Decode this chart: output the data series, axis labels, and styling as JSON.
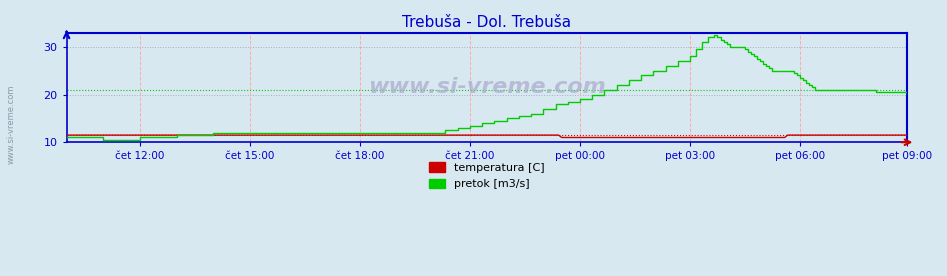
{
  "title": "Trebuša - Dol. Trebuša",
  "title_color": "#0000cc",
  "bg_color": "#d8e8f0",
  "plot_bg_color": "#d8e8f0",
  "ylabel_left": "",
  "ylim": [
    10,
    33
  ],
  "yticks": [
    10,
    20,
    30
  ],
  "xtick_labels": [
    "čet 12:00",
    "čet 15:00",
    "čet 18:00",
    "čet 21:00",
    "pet 00:00",
    "pet 03:00",
    "pet 06:00",
    "pet 09:00"
  ],
  "grid_color_h": "#aaaacc",
  "grid_color_v": "#ffaaaa",
  "axis_color": "#0000cc",
  "tick_color": "#0000cc",
  "watermark": "www.si-vreme.com",
  "watermark_color": "#aaaacc",
  "legend_items": [
    {
      "label": "temperatura [C]",
      "color": "#cc0000"
    },
    {
      "label": "pretok [m3/s]",
      "color": "#00cc00"
    }
  ],
  "hline_temp": 11.5,
  "hline_pretok": 21.0,
  "hline_temp_color": "#cc0000",
  "hline_pretok_color": "#00cc00",
  "n_points": 288,
  "temp_base": 11.5,
  "pretok_data": [
    11,
    11,
    11,
    11,
    11,
    11,
    11,
    11,
    11,
    11,
    11,
    11,
    10.5,
    10.5,
    10.5,
    10.5,
    10.5,
    10.5,
    10.5,
    10.5,
    10.5,
    10.5,
    10.5,
    10.5,
    11,
    11,
    11,
    11,
    11,
    11,
    11,
    11,
    11,
    11,
    11,
    11,
    11.5,
    11.5,
    11.5,
    11.5,
    11.5,
    11.5,
    11.5,
    11.5,
    11.5,
    11.5,
    11.5,
    11.5,
    12,
    12,
    12,
    12,
    12,
    12,
    12,
    12,
    12,
    12,
    12,
    12,
    12,
    12,
    12,
    12,
    12,
    12,
    12,
    12,
    12,
    12,
    12,
    12,
    12,
    12,
    12,
    12,
    12,
    12,
    12,
    12,
    12,
    12,
    12,
    12,
    12,
    12,
    12,
    12,
    12,
    12,
    12,
    12,
    12,
    12,
    12,
    12,
    12,
    12,
    12,
    12,
    12,
    12,
    12,
    12,
    12,
    12,
    12,
    12,
    12,
    12,
    12,
    12,
    12,
    12,
    12,
    12,
    12,
    12,
    12,
    12,
    12,
    12,
    12,
    12,
    12.5,
    12.5,
    12.5,
    12.5,
    13,
    13,
    13,
    13,
    13.5,
    13.5,
    13.5,
    13.5,
    14,
    14,
    14,
    14,
    14.5,
    14.5,
    14.5,
    14.5,
    15,
    15,
    15,
    15,
    15.5,
    15.5,
    15.5,
    15.5,
    16,
    16,
    16,
    16,
    17,
    17,
    17,
    17,
    18,
    18,
    18,
    18,
    18.5,
    18.5,
    18.5,
    18.5,
    19,
    19,
    19,
    19,
    20,
    20,
    20,
    20,
    21,
    21,
    21,
    21,
    22,
    22,
    22,
    22,
    23,
    23,
    23,
    23,
    24,
    24,
    24,
    24,
    25,
    25,
    25,
    25,
    26,
    26,
    26,
    26,
    27,
    27,
    27,
    27,
    28,
    28,
    29.5,
    29.5,
    31,
    31,
    32,
    32,
    32.5,
    32,
    31.5,
    31,
    30.5,
    30,
    30,
    30,
    30,
    30,
    29.5,
    29,
    28.5,
    28,
    27.5,
    27,
    26.5,
    26,
    25.5,
    25,
    25,
    25,
    25,
    25,
    25,
    25,
    24.5,
    24,
    23.5,
    23,
    22.5,
    22,
    21.5,
    21,
    21,
    21,
    21,
    21,
    21,
    21,
    21,
    21,
    21,
    21,
    21,
    21,
    21,
    21,
    21,
    21,
    21,
    21,
    21,
    20.5,
    20.5,
    20.5,
    20.5,
    20.5,
    20.5,
    20.5,
    20.5,
    20.5,
    20.5,
    20,
    20,
    20,
    20,
    20,
    20,
    20,
    20,
    20,
    20,
    20,
    20
  ],
  "temp_data": [
    11.5,
    11.5,
    11.5,
    11.5,
    11.5,
    11.5,
    11.5,
    11.5,
    11.5,
    11.5,
    11.5,
    11.5,
    11.5,
    11.5,
    11.5,
    11.5,
    11.5,
    11.5,
    11.5,
    11.5,
    11.5,
    11.5,
    11.5,
    11.5,
    11.5,
    11.5,
    11.5,
    11.5,
    11.5,
    11.5,
    11.5,
    11.5,
    11.5,
    11.5,
    11.5,
    11.5,
    11.5,
    11.5,
    11.5,
    11.5,
    11.5,
    11.5,
    11.5,
    11.5,
    11.5,
    11.5,
    11.5,
    11.5,
    11.5,
    11.5,
    11.5,
    11.5,
    11.5,
    11.5,
    11.5,
    11.5,
    11.5,
    11.5,
    11.5,
    11.5,
    11.5,
    11.5,
    11.5,
    11.5,
    11.5,
    11.5,
    11.5,
    11.5,
    11.5,
    11.5,
    11.5,
    11.5,
    11.5,
    11.5,
    11.5,
    11.5,
    11.5,
    11.5,
    11.5,
    11.5,
    11.5,
    11.5,
    11.5,
    11.5,
    11.5,
    11.5,
    11.5,
    11.5,
    11.5,
    11.5,
    11.5,
    11.5,
    11.5,
    11.5,
    11.5,
    11.5,
    11.5,
    11.5,
    11.5,
    11.5,
    11.5,
    11.5,
    11.5,
    11.5,
    11.5,
    11.5,
    11.5,
    11.5,
    11.5,
    11.5,
    11.5,
    11.5,
    11.5,
    11.5,
    11.5,
    11.5,
    11.5,
    11.5,
    11.5,
    11.5,
    11.5,
    11.5,
    11.5,
    11.5,
    11.5,
    11.5,
    11.5,
    11.5,
    11.5,
    11.5,
    11.5,
    11.5,
    11.5,
    11.5,
    11.5,
    11.5,
    11.5,
    11.5,
    11.5,
    11.5,
    11.5,
    11.5,
    11.5,
    11.5,
    11.5,
    11.5,
    11.5,
    11.5,
    11.5,
    11.5,
    11.5,
    11.5,
    11.5,
    11.5,
    11.5,
    11.5,
    11.5,
    11.5,
    11.5,
    11.5,
    11.5,
    11.5,
    11.0,
    11.0,
    11.0,
    11.0,
    11.0,
    11.0,
    11.0,
    11.0,
    11.0,
    11.0,
    11.0,
    11.0,
    11.0,
    11.0,
    11.0,
    11.0,
    11.0,
    11.0,
    11.0,
    11.0,
    11.0,
    11.0,
    11.0,
    11.0,
    11.0,
    11.0,
    11.0,
    11.0,
    11.0,
    11.0,
    11.0,
    11.0,
    11.0,
    11.0,
    11.0,
    11.0,
    11.0,
    11.0,
    11.0,
    11.0,
    11.0,
    11.0,
    11.0,
    11.0,
    11.0,
    11.0,
    11.0,
    11.0,
    11.0,
    11.0,
    11.0,
    11.0,
    11.0,
    11.0,
    11.0,
    11.0,
    11.0,
    11.0,
    11.0,
    11.0,
    11.0,
    11.0,
    11.0,
    11.0,
    11.0,
    11.0,
    11.0,
    11.0,
    11.0,
    11.0,
    11.0,
    11.0,
    11.0,
    11.0,
    11.5,
    11.5,
    11.5,
    11.5,
    11.5,
    11.5,
    11.5,
    11.5,
    11.5,
    11.5,
    11.5,
    11.5,
    11.5,
    11.5,
    11.5,
    11.5,
    11.5,
    11.5,
    11.5,
    11.5,
    11.5,
    11.5,
    11.5,
    11.5,
    11.5,
    11.5,
    11.5,
    11.5,
    11.5,
    11.5,
    11.5,
    11.5,
    11.5,
    11.5,
    11.5,
    11.5,
    11.5,
    11.5,
    11.5,
    11.5,
    11.5,
    11.5,
    11.5,
    11.5
  ]
}
